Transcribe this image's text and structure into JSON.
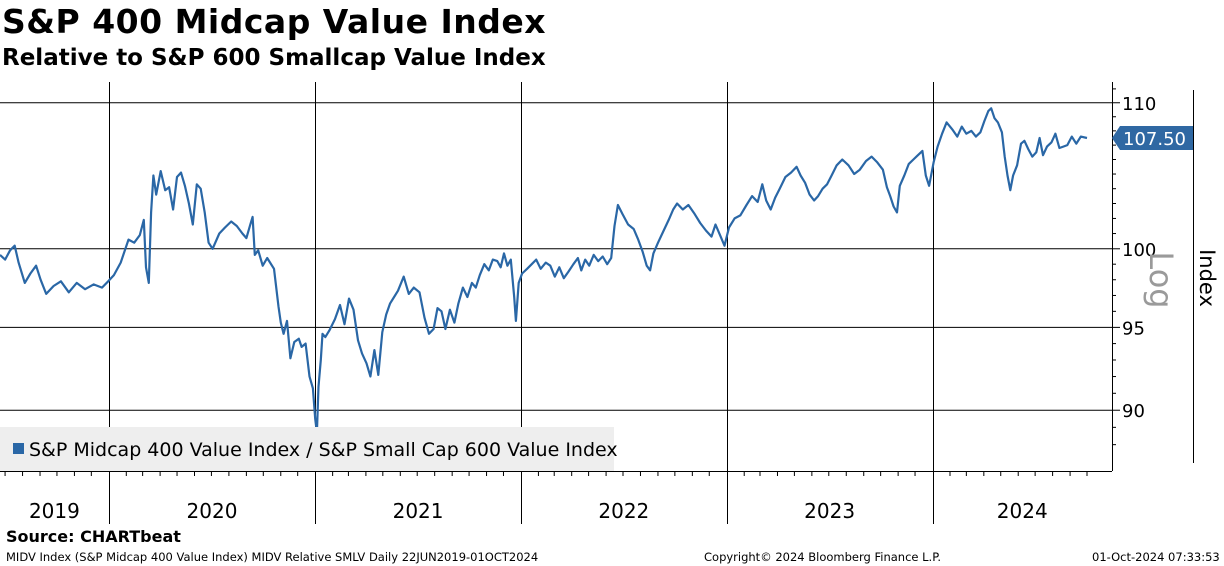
{
  "title": "S&P 400 Midcap Value Index",
  "subtitle": "Relative to S&P 600 Smallcap Value Index",
  "source": "Source: CHARTbeat",
  "footer": {
    "ticker_info": "MIDV Index (S&P Midcap 400 Value Index) MIDV Relative SMLV  Daily 22JUN2019-01OCT2024",
    "copyright": "Copyright© 2024 Bloomberg Finance L.P.",
    "timestamp": "01-Oct-2024 07:33:53"
  },
  "chart_data": {
    "type": "line",
    "title": "S&P 400 Midcap Value Index",
    "subtitle": "Relative to S&P 600 Smallcap Value Index",
    "xlabel": "",
    "ylabel": "Index",
    "scale_note": "Log",
    "y_scale": "log",
    "ylim": [
      86.5,
      111.5
    ],
    "y_ticks": [
      90,
      95,
      100,
      110
    ],
    "x_range": [
      "2019-06-22",
      "2024-10-01"
    ],
    "x_tick_labels": [
      "2019",
      "2020",
      "2021",
      "2022",
      "2023",
      "2024"
    ],
    "grid": true,
    "legend_position": "bottom-left",
    "last_value_label": "107.50",
    "colors": {
      "series": "#2a67a6",
      "grid": "#000000",
      "legend_bg": "#eeeeee"
    },
    "series": [
      {
        "name": "S&P Midcap 400 Value Index / S&P Small Cap 600 Value Index",
        "points": [
          [
            "2019-06-22",
            99.6
          ],
          [
            "2019-07-01",
            99.3
          ],
          [
            "2019-07-10",
            99.9
          ],
          [
            "2019-07-18",
            100.2
          ],
          [
            "2019-07-25",
            99.1
          ],
          [
            "2019-08-05",
            97.8
          ],
          [
            "2019-08-15",
            98.4
          ],
          [
            "2019-08-25",
            98.9
          ],
          [
            "2019-09-02",
            98.0
          ],
          [
            "2019-09-12",
            97.1
          ],
          [
            "2019-09-25",
            97.6
          ],
          [
            "2019-10-08",
            97.9
          ],
          [
            "2019-10-22",
            97.2
          ],
          [
            "2019-11-05",
            97.8
          ],
          [
            "2019-11-20",
            97.4
          ],
          [
            "2019-12-05",
            97.7
          ],
          [
            "2019-12-20",
            97.5
          ],
          [
            "2019-12-31",
            97.9
          ],
          [
            "2020-01-10",
            98.3
          ],
          [
            "2020-01-22",
            99.1
          ],
          [
            "2020-02-05",
            100.6
          ],
          [
            "2020-02-15",
            100.4
          ],
          [
            "2020-02-25",
            100.9
          ],
          [
            "2020-03-03",
            101.9
          ],
          [
            "2020-03-07",
            98.8
          ],
          [
            "2020-03-12",
            97.8
          ],
          [
            "2020-03-16",
            102.4
          ],
          [
            "2020-03-20",
            104.9
          ],
          [
            "2020-03-25",
            103.6
          ],
          [
            "2020-04-02",
            105.2
          ],
          [
            "2020-04-10",
            103.9
          ],
          [
            "2020-04-17",
            104.1
          ],
          [
            "2020-04-24",
            102.6
          ],
          [
            "2020-05-01",
            104.8
          ],
          [
            "2020-05-08",
            105.1
          ],
          [
            "2020-05-15",
            104.2
          ],
          [
            "2020-05-22",
            103.0
          ],
          [
            "2020-05-29",
            101.6
          ],
          [
            "2020-06-05",
            104.3
          ],
          [
            "2020-06-12",
            104.0
          ],
          [
            "2020-06-19",
            102.4
          ],
          [
            "2020-06-26",
            100.4
          ],
          [
            "2020-07-03",
            100.0
          ],
          [
            "2020-07-15",
            101.0
          ],
          [
            "2020-07-25",
            101.4
          ],
          [
            "2020-08-05",
            101.8
          ],
          [
            "2020-08-15",
            101.5
          ],
          [
            "2020-08-25",
            101.0
          ],
          [
            "2020-09-01",
            100.7
          ],
          [
            "2020-09-08",
            101.6
          ],
          [
            "2020-09-12",
            102.1
          ],
          [
            "2020-09-16",
            99.6
          ],
          [
            "2020-09-22",
            99.9
          ],
          [
            "2020-09-30",
            98.9
          ],
          [
            "2020-10-08",
            99.4
          ],
          [
            "2020-10-20",
            98.7
          ],
          [
            "2020-10-28",
            96.3
          ],
          [
            "2020-11-01",
            95.3
          ],
          [
            "2020-11-06",
            94.6
          ],
          [
            "2020-11-12",
            95.4
          ],
          [
            "2020-11-18",
            93.1
          ],
          [
            "2020-11-25",
            94.1
          ],
          [
            "2020-12-03",
            94.3
          ],
          [
            "2020-12-08",
            93.8
          ],
          [
            "2020-12-15",
            94.0
          ],
          [
            "2020-12-22",
            92.0
          ],
          [
            "2020-12-28",
            91.3
          ],
          [
            "2021-01-01",
            89.5
          ],
          [
            "2021-01-04",
            88.7
          ],
          [
            "2021-01-07",
            91.4
          ],
          [
            "2021-01-11",
            93.0
          ],
          [
            "2021-01-14",
            94.6
          ],
          [
            "2021-01-19",
            94.4
          ],
          [
            "2021-01-26",
            94.8
          ],
          [
            "2021-02-05",
            95.5
          ],
          [
            "2021-02-14",
            96.4
          ],
          [
            "2021-02-22",
            95.2
          ],
          [
            "2021-03-02",
            96.8
          ],
          [
            "2021-03-10",
            96.1
          ],
          [
            "2021-03-18",
            94.2
          ],
          [
            "2021-03-25",
            93.4
          ],
          [
            "2021-04-02",
            92.8
          ],
          [
            "2021-04-09",
            92.0
          ],
          [
            "2021-04-16",
            93.6
          ],
          [
            "2021-04-23",
            92.1
          ],
          [
            "2021-04-30",
            94.7
          ],
          [
            "2021-05-07",
            95.8
          ],
          [
            "2021-05-14",
            96.5
          ],
          [
            "2021-05-21",
            96.9
          ],
          [
            "2021-05-28",
            97.3
          ],
          [
            "2021-06-07",
            98.2
          ],
          [
            "2021-06-16",
            97.1
          ],
          [
            "2021-06-25",
            97.5
          ],
          [
            "2021-07-05",
            97.2
          ],
          [
            "2021-07-14",
            95.6
          ],
          [
            "2021-07-22",
            94.6
          ],
          [
            "2021-07-30",
            94.9
          ],
          [
            "2021-08-06",
            96.2
          ],
          [
            "2021-08-13",
            96.0
          ],
          [
            "2021-08-20",
            94.9
          ],
          [
            "2021-08-28",
            96.1
          ],
          [
            "2021-09-05",
            95.3
          ],
          [
            "2021-09-12",
            96.5
          ],
          [
            "2021-09-20",
            97.5
          ],
          [
            "2021-09-28",
            96.9
          ],
          [
            "2021-10-06",
            97.8
          ],
          [
            "2021-10-13",
            97.5
          ],
          [
            "2021-10-20",
            98.3
          ],
          [
            "2021-10-28",
            99.0
          ],
          [
            "2021-11-05",
            98.6
          ],
          [
            "2021-11-12",
            99.3
          ],
          [
            "2021-11-20",
            99.2
          ],
          [
            "2021-11-26",
            98.8
          ],
          [
            "2021-12-02",
            99.7
          ],
          [
            "2021-12-08",
            98.9
          ],
          [
            "2021-12-14",
            99.3
          ],
          [
            "2021-12-20",
            96.9
          ],
          [
            "2021-12-23",
            95.4
          ],
          [
            "2021-12-28",
            97.8
          ],
          [
            "2022-01-03",
            98.4
          ],
          [
            "2022-01-12",
            98.7
          ],
          [
            "2022-01-20",
            99.0
          ],
          [
            "2022-01-28",
            99.3
          ],
          [
            "2022-02-05",
            98.7
          ],
          [
            "2022-02-14",
            99.1
          ],
          [
            "2022-02-22",
            98.9
          ],
          [
            "2022-03-02",
            98.2
          ],
          [
            "2022-03-10",
            98.8
          ],
          [
            "2022-03-18",
            98.1
          ],
          [
            "2022-03-26",
            98.5
          ],
          [
            "2022-04-04",
            99.0
          ],
          [
            "2022-04-12",
            99.4
          ],
          [
            "2022-04-18",
            98.6
          ],
          [
            "2022-04-25",
            99.3
          ],
          [
            "2022-05-02",
            98.9
          ],
          [
            "2022-05-10",
            99.6
          ],
          [
            "2022-05-18",
            99.2
          ],
          [
            "2022-05-26",
            99.5
          ],
          [
            "2022-06-03",
            99.0
          ],
          [
            "2022-06-10",
            99.4
          ],
          [
            "2022-06-16",
            101.5
          ],
          [
            "2022-06-22",
            102.9
          ],
          [
            "2022-06-30",
            102.3
          ],
          [
            "2022-07-10",
            101.6
          ],
          [
            "2022-07-20",
            101.3
          ],
          [
            "2022-07-28",
            100.6
          ],
          [
            "2022-08-05",
            99.8
          ],
          [
            "2022-08-12",
            98.9
          ],
          [
            "2022-08-18",
            98.6
          ],
          [
            "2022-08-24",
            99.7
          ],
          [
            "2022-09-01",
            100.4
          ],
          [
            "2022-09-10",
            101.1
          ],
          [
            "2022-09-20",
            101.9
          ],
          [
            "2022-09-28",
            102.6
          ],
          [
            "2022-10-05",
            103.0
          ],
          [
            "2022-10-15",
            102.6
          ],
          [
            "2022-10-25",
            102.9
          ],
          [
            "2022-11-05",
            102.3
          ],
          [
            "2022-11-15",
            101.7
          ],
          [
            "2022-11-25",
            101.2
          ],
          [
            "2022-12-05",
            100.8
          ],
          [
            "2022-12-12",
            101.6
          ],
          [
            "2022-12-20",
            100.9
          ],
          [
            "2022-12-28",
            100.2
          ],
          [
            "2023-01-05",
            101.4
          ],
          [
            "2023-01-15",
            102.0
          ],
          [
            "2023-01-25",
            102.2
          ],
          [
            "2023-02-05",
            102.9
          ],
          [
            "2023-02-15",
            103.5
          ],
          [
            "2023-02-25",
            103.1
          ],
          [
            "2023-03-05",
            104.3
          ],
          [
            "2023-03-12",
            103.2
          ],
          [
            "2023-03-20",
            102.6
          ],
          [
            "2023-03-28",
            103.4
          ],
          [
            "2023-04-05",
            104.0
          ],
          [
            "2023-04-15",
            104.8
          ],
          [
            "2023-04-25",
            105.1
          ],
          [
            "2023-05-05",
            105.5
          ],
          [
            "2023-05-12",
            104.9
          ],
          [
            "2023-05-20",
            104.4
          ],
          [
            "2023-05-28",
            103.6
          ],
          [
            "2023-06-05",
            103.2
          ],
          [
            "2023-06-12",
            103.5
          ],
          [
            "2023-06-20",
            104.0
          ],
          [
            "2023-06-28",
            104.3
          ],
          [
            "2023-07-06",
            104.9
          ],
          [
            "2023-07-15",
            105.6
          ],
          [
            "2023-07-25",
            106.0
          ],
          [
            "2023-08-05",
            105.6
          ],
          [
            "2023-08-15",
            105.0
          ],
          [
            "2023-08-25",
            105.3
          ],
          [
            "2023-09-05",
            105.9
          ],
          [
            "2023-09-15",
            106.2
          ],
          [
            "2023-09-25",
            105.8
          ],
          [
            "2023-10-05",
            105.3
          ],
          [
            "2023-10-12",
            104.1
          ],
          [
            "2023-10-18",
            103.5
          ],
          [
            "2023-10-24",
            102.8
          ],
          [
            "2023-10-30",
            102.4
          ],
          [
            "2023-11-04",
            104.2
          ],
          [
            "2023-11-12",
            104.9
          ],
          [
            "2023-11-20",
            105.7
          ],
          [
            "2023-11-28",
            106.0
          ],
          [
            "2023-12-06",
            106.3
          ],
          [
            "2023-12-14",
            106.6
          ],
          [
            "2023-12-20",
            104.9
          ],
          [
            "2023-12-26",
            104.2
          ],
          [
            "2024-01-03",
            105.8
          ],
          [
            "2024-01-10",
            106.9
          ],
          [
            "2024-01-18",
            107.8
          ],
          [
            "2024-01-26",
            108.6
          ],
          [
            "2024-02-05",
            108.1
          ],
          [
            "2024-02-14",
            107.6
          ],
          [
            "2024-02-22",
            108.3
          ],
          [
            "2024-03-01",
            107.8
          ],
          [
            "2024-03-10",
            108.0
          ],
          [
            "2024-03-18",
            107.6
          ],
          [
            "2024-03-26",
            107.9
          ],
          [
            "2024-04-02",
            108.7
          ],
          [
            "2024-04-09",
            109.4
          ],
          [
            "2024-04-14",
            109.6
          ],
          [
            "2024-04-20",
            108.9
          ],
          [
            "2024-04-26",
            108.6
          ],
          [
            "2024-05-03",
            107.9
          ],
          [
            "2024-05-08",
            106.2
          ],
          [
            "2024-05-13",
            104.9
          ],
          [
            "2024-05-18",
            103.9
          ],
          [
            "2024-05-23",
            104.9
          ],
          [
            "2024-05-30",
            105.6
          ],
          [
            "2024-06-06",
            107.1
          ],
          [
            "2024-06-12",
            107.3
          ],
          [
            "2024-06-19",
            106.7
          ],
          [
            "2024-06-26",
            106.2
          ],
          [
            "2024-07-03",
            106.5
          ],
          [
            "2024-07-09",
            107.5
          ],
          [
            "2024-07-15",
            106.3
          ],
          [
            "2024-07-22",
            106.9
          ],
          [
            "2024-07-30",
            107.2
          ],
          [
            "2024-08-06",
            107.8
          ],
          [
            "2024-08-13",
            106.8
          ],
          [
            "2024-08-20",
            106.9
          ],
          [
            "2024-08-27",
            107.0
          ],
          [
            "2024-09-04",
            107.6
          ],
          [
            "2024-09-12",
            107.1
          ],
          [
            "2024-09-20",
            107.6
          ],
          [
            "2024-10-01",
            107.5
          ]
        ]
      }
    ]
  }
}
